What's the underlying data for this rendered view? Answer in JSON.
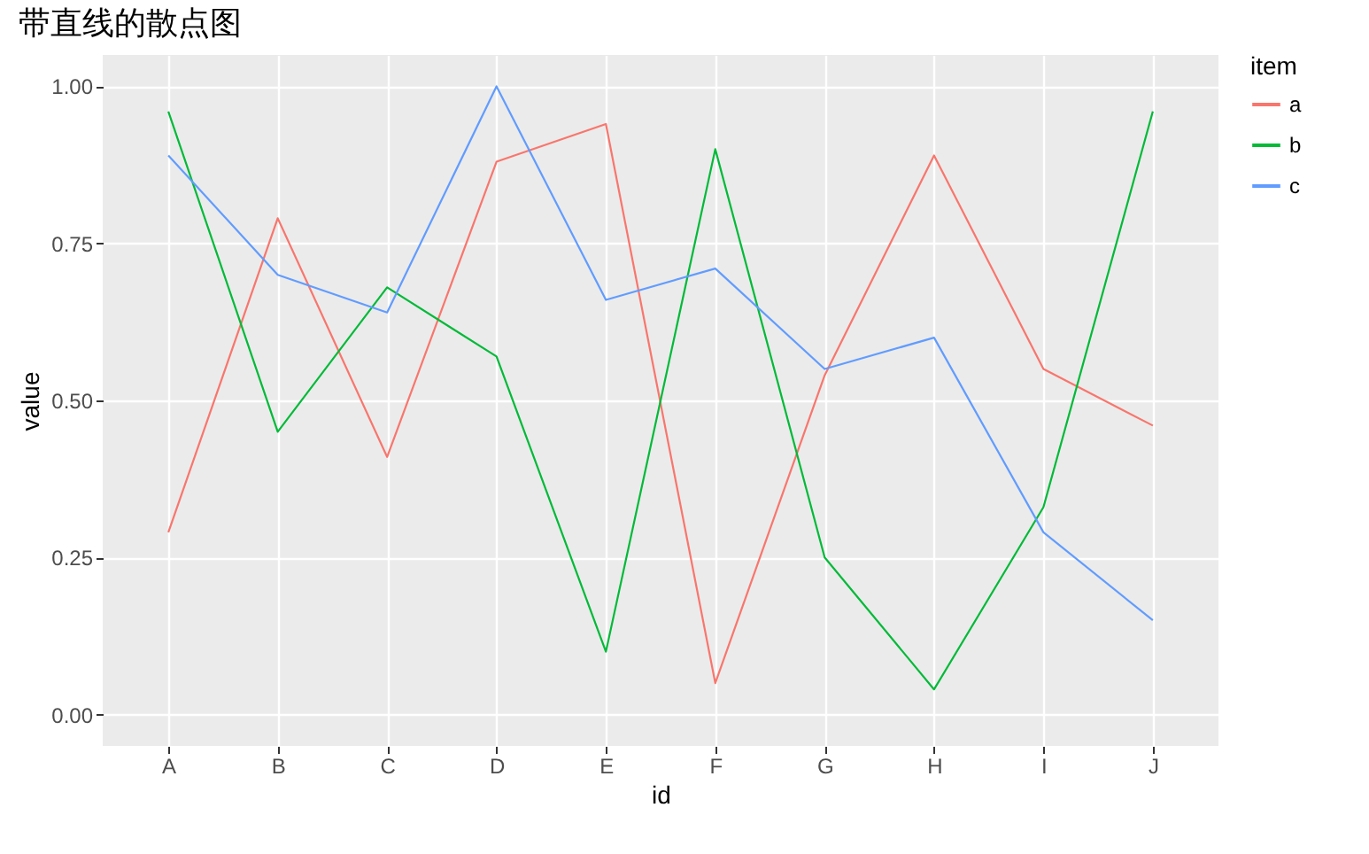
{
  "chart_data": {
    "type": "line",
    "title": "带直线的散点图",
    "xlabel": "id",
    "ylabel": "value",
    "legend_title": "item",
    "categories": [
      "A",
      "B",
      "C",
      "D",
      "E",
      "F",
      "G",
      "H",
      "I",
      "J"
    ],
    "series": [
      {
        "name": "a",
        "color": "#f8766d",
        "values": [
          0.29,
          0.79,
          0.41,
          0.88,
          0.94,
          0.05,
          0.54,
          0.89,
          0.55,
          0.46
        ]
      },
      {
        "name": "b",
        "color": "#00ba38",
        "values": [
          0.96,
          0.45,
          0.68,
          0.57,
          0.1,
          0.9,
          0.25,
          0.04,
          0.33,
          0.96
        ]
      },
      {
        "name": "c",
        "color": "#619cff",
        "values": [
          0.89,
          0.7,
          0.64,
          1.0,
          0.66,
          0.71,
          0.55,
          0.6,
          0.29,
          0.15
        ]
      }
    ],
    "ylim": [
      -0.05,
      1.05
    ],
    "yticks": [
      {
        "value": 0,
        "label": "0.00"
      },
      {
        "value": 0.25,
        "label": "0.25"
      },
      {
        "value": 0.5,
        "label": "0.50"
      },
      {
        "value": 0.75,
        "label": "0.75"
      },
      {
        "value": 1,
        "label": "1.00"
      }
    ],
    "grid": true,
    "legend": "right",
    "marker": "none",
    "line_style": "solid"
  }
}
